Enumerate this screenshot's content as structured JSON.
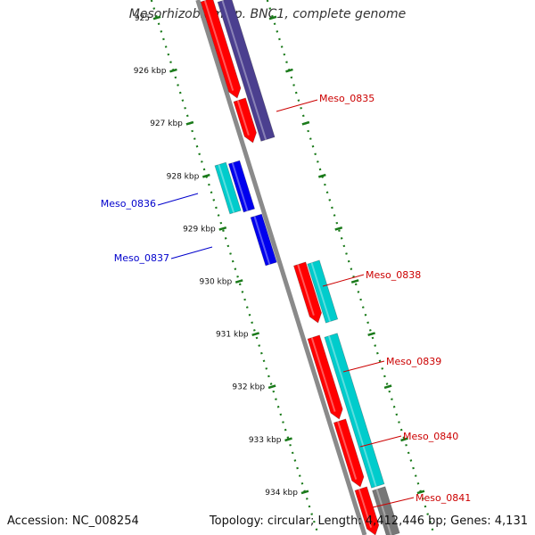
{
  "title": "Mesorhizobium sp. BNC1, complete genome",
  "footer": {
    "accession": "Accession: NC_008254",
    "topology": "Topology: circular; Length: 4,412,446 bp; Genes: 4,131"
  },
  "colors": {
    "backbone": "#8a8a8a",
    "ticks": "#1a7a1a",
    "red": "#ff0000",
    "cyan": "#00cccc",
    "blue": "#0000ee",
    "navy": "#4b3f8f",
    "gray": "#777777",
    "label_red": "#cc0000",
    "label_blue": "#0000cc"
  },
  "kbp_marks": [
    {
      "kbp": 925,
      "label": "925"
    },
    {
      "kbp": 926,
      "label": "926 kbp"
    },
    {
      "kbp": 927,
      "label": "927 kbp"
    },
    {
      "kbp": 928,
      "label": "928 kbp"
    },
    {
      "kbp": 929,
      "label": "929 kbp"
    },
    {
      "kbp": 930,
      "label": "930 kbp"
    },
    {
      "kbp": 931,
      "label": "931 kbp"
    },
    {
      "kbp": 932,
      "label": "932 kbp"
    },
    {
      "kbp": 933,
      "label": "933 kbp"
    },
    {
      "kbp": 934,
      "label": "934 kbp"
    }
  ],
  "gene_labels": [
    {
      "text": "Meso_0835",
      "color": "red"
    },
    {
      "text": "Meso_0836",
      "color": "blue"
    },
    {
      "text": "Meso_0837",
      "color": "blue"
    },
    {
      "text": "Meso_0838",
      "color": "red"
    },
    {
      "text": "Meso_0839",
      "color": "red"
    },
    {
      "text": "Meso_0840",
      "color": "red"
    },
    {
      "text": "Meso_0841",
      "color": "red"
    }
  ]
}
